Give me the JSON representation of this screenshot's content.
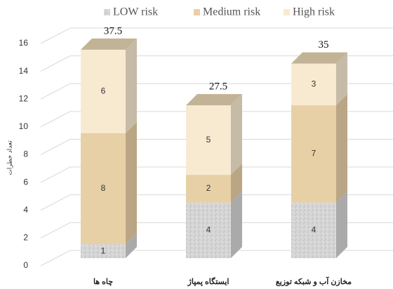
{
  "chart_data": {
    "type": "bar3d_stacked",
    "categories": [
      "چاه ها",
      "ایستگاه پمپاژ",
      "مخازن آب و شبکه توزیع"
    ],
    "series": [
      {
        "name": "LOW risk",
        "color": "#d4d4d4",
        "values": [
          1,
          4,
          4
        ]
      },
      {
        "name": "Medium risk",
        "color": "#e8d0a6",
        "values": [
          8,
          2,
          7
        ]
      },
      {
        "name": "High risk",
        "color": "#f8ead1",
        "values": [
          6,
          5,
          3
        ]
      }
    ],
    "annotations": [
      37.5,
      27.5,
      35
    ],
    "ylabel": "تعداد خطرات",
    "ylim": [
      0,
      16
    ],
    "yticks": [
      0,
      2,
      4,
      6,
      8,
      10,
      12,
      14,
      16
    ],
    "grid": true,
    "legend": "top"
  }
}
